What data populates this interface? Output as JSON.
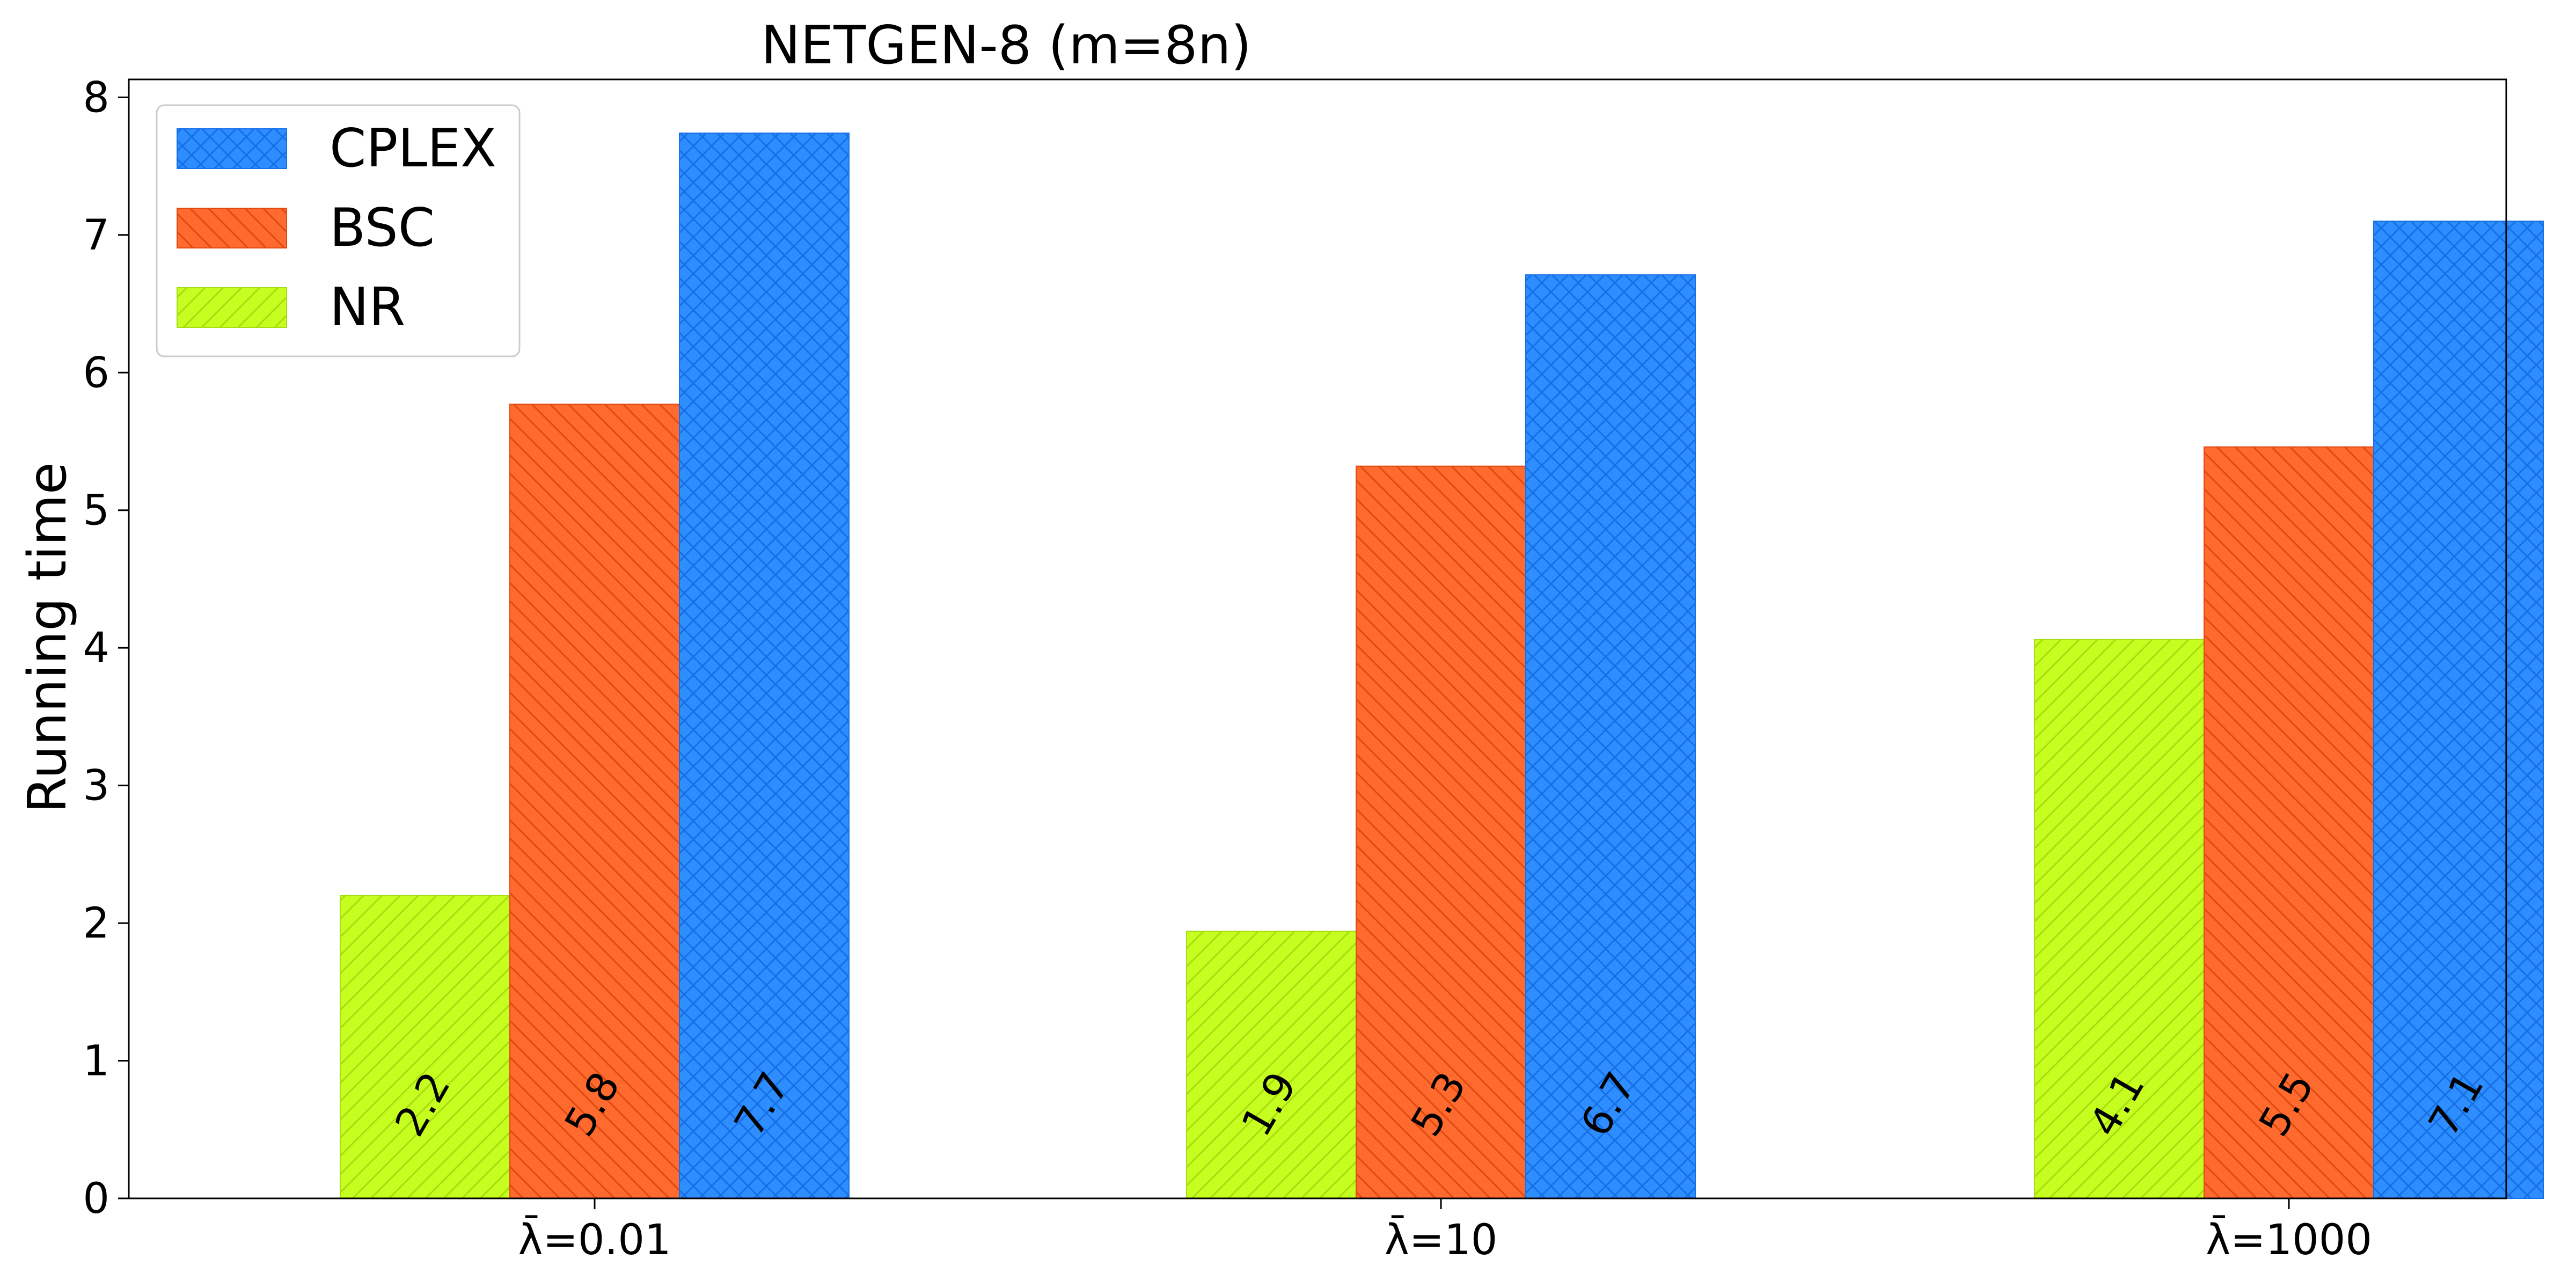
{
  "chart_data": {
    "type": "bar",
    "title": "NETGEN-8  (m=8n)",
    "xlabel": "",
    "ylabel": "Running time",
    "categories": [
      "λ̄=0.01",
      "λ̄=10",
      "λ̄=1000"
    ],
    "series": [
      {
        "name": "NR",
        "values": [
          2.2,
          1.94,
          4.06
        ],
        "labels": [
          "2.2",
          "1.9",
          "4.1"
        ],
        "color": "#c6ff1f",
        "edge": "#a7dc10",
        "hatch": "diag-forward"
      },
      {
        "name": "BSC",
        "values": [
          5.77,
          5.32,
          5.46
        ],
        "labels": [
          "5.8",
          "5.3",
          "5.5"
        ],
        "color": "#ff6a2e",
        "edge": "#e04a10",
        "hatch": "diag-back"
      },
      {
        "name": "CPLEX",
        "values": [
          7.74,
          6.71,
          7.1
        ],
        "labels": [
          "7.7",
          "6.7",
          "7.1"
        ],
        "color": "#2f8eff",
        "edge": "#1570e6",
        "hatch": "cross"
      }
    ],
    "ylim": [
      0,
      8.13
    ],
    "yticks": [
      0,
      1,
      2,
      3,
      4,
      5,
      6,
      7,
      8
    ],
    "legend": {
      "placement": "upper-left",
      "order": [
        "CPLEX",
        "BSC",
        "NR"
      ]
    },
    "grid": false
  }
}
